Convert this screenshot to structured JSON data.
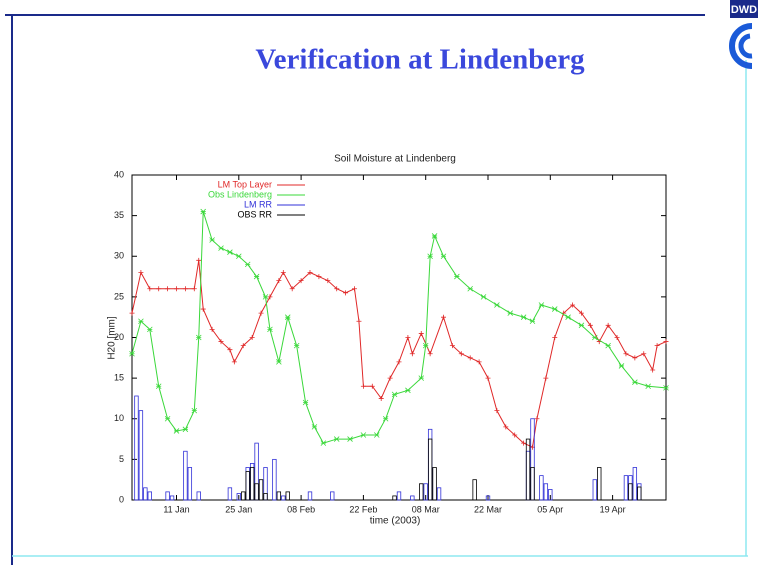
{
  "slide_title": "Verification at Lindenberg",
  "logo_text": "DWD",
  "chart_data": {
    "type": "line",
    "title": "Soil Moisture at Lindenberg",
    "xlabel": "time (2003)",
    "ylabel": "H20 [mm]",
    "xlim": [
      0,
      120
    ],
    "ylim": [
      0,
      40
    ],
    "yticks": [
      0,
      5,
      10,
      15,
      20,
      25,
      30,
      35,
      40
    ],
    "xticks": [
      {
        "value": 10,
        "label": "11 Jan"
      },
      {
        "value": 24,
        "label": "25 Jan"
      },
      {
        "value": 38,
        "label": "08 Feb"
      },
      {
        "value": 52,
        "label": "22 Feb"
      },
      {
        "value": 66,
        "label": "08 Mar"
      },
      {
        "value": 80,
        "label": "22 Mar"
      },
      {
        "value": 94,
        "label": "05 Apr"
      },
      {
        "value": 108,
        "label": "19 Apr"
      }
    ],
    "legend": "upper left",
    "series": [
      {
        "name": "LM Top Layer",
        "color": "#e02828",
        "kind": "line",
        "x": [
          0,
          2,
          4,
          6,
          8,
          10,
          12,
          14,
          15,
          16,
          18,
          20,
          22,
          23,
          25,
          27,
          29,
          31,
          33,
          34,
          36,
          38,
          40,
          42,
          44,
          46,
          48,
          50,
          51,
          52,
          54,
          56,
          58,
          60,
          62,
          63,
          65,
          67,
          70,
          72,
          74,
          76,
          78,
          80,
          82,
          84,
          86,
          88,
          90,
          91,
          93,
          95,
          97,
          99,
          101,
          103,
          105,
          107,
          109,
          111,
          113,
          115,
          117,
          118,
          120
        ],
        "values": [
          23,
          28,
          26,
          26,
          26,
          26,
          26,
          26,
          29.5,
          23.5,
          21,
          19.5,
          18.5,
          17,
          19,
          20,
          23,
          25,
          27,
          28,
          26,
          27,
          28,
          27.5,
          27,
          26,
          25.5,
          26,
          22,
          14,
          14,
          12.5,
          15,
          17,
          20,
          18,
          20.5,
          18,
          22.5,
          19,
          18,
          17.5,
          17,
          15,
          11,
          9,
          8,
          7,
          6.5,
          10,
          15,
          20,
          23,
          24,
          23,
          21.5,
          19.5,
          21.5,
          20,
          18,
          17.5,
          18,
          16,
          19,
          19.5
        ]
      },
      {
        "name": "Obs Lindenberg",
        "color": "#3ad83a",
        "kind": "line",
        "x": [
          0,
          2,
          4,
          6,
          8,
          10,
          12,
          14,
          15,
          16,
          18,
          20,
          22,
          24,
          26,
          28,
          30,
          31,
          33,
          35,
          37,
          39,
          41,
          43,
          46,
          49,
          52,
          55,
          57,
          59,
          62,
          65,
          66,
          67,
          68,
          70,
          73,
          76,
          79,
          82,
          85,
          88,
          90,
          92,
          95,
          98,
          101,
          104,
          107,
          110,
          113,
          116,
          120
        ],
        "values": [
          18,
          22,
          21,
          14,
          10,
          8.5,
          8.7,
          11,
          20,
          35.5,
          32,
          31,
          30.5,
          30,
          29,
          27.5,
          25,
          21,
          17,
          22.5,
          19,
          12,
          9,
          7,
          7.5,
          7.5,
          8,
          8,
          10,
          13,
          13.5,
          15,
          19,
          30,
          32.5,
          30,
          27.5,
          26,
          25,
          24,
          23,
          22.5,
          22,
          24,
          23.5,
          22.5,
          21.5,
          20,
          19,
          16.5,
          14.5,
          14,
          13.8
        ]
      },
      {
        "name": "LM RR",
        "color": "#3030d8",
        "kind": "bar",
        "x": [
          1,
          2,
          3,
          4,
          8,
          9,
          12,
          13,
          15,
          22,
          24,
          26,
          27,
          28,
          30,
          32,
          34,
          40,
          45,
          60,
          63,
          66,
          67,
          69,
          80,
          89,
          90,
          92,
          93,
          94,
          104,
          111,
          112,
          113,
          114
        ],
        "values": [
          12.8,
          11,
          1.5,
          1,
          1,
          0.5,
          6,
          4,
          1,
          1.5,
          0.8,
          4,
          4.5,
          7,
          4,
          5,
          0.5,
          1,
          1,
          1,
          0.5,
          2,
          8.7,
          1.5,
          0.5,
          6,
          10,
          3,
          2,
          1.3,
          2.5,
          3,
          3,
          4,
          2
        ]
      },
      {
        "name": "OBS RR",
        "color": "#000000",
        "kind": "bar",
        "x": [
          25,
          26,
          27,
          28,
          29,
          30,
          33,
          35,
          59,
          65,
          67,
          68,
          77,
          89,
          90,
          105,
          112,
          114
        ],
        "values": [
          1,
          3.5,
          4,
          2,
          2.5,
          0.8,
          1,
          1,
          0.5,
          2,
          7.5,
          4,
          2.5,
          7.5,
          4,
          4,
          2,
          1.6
        ]
      }
    ]
  }
}
